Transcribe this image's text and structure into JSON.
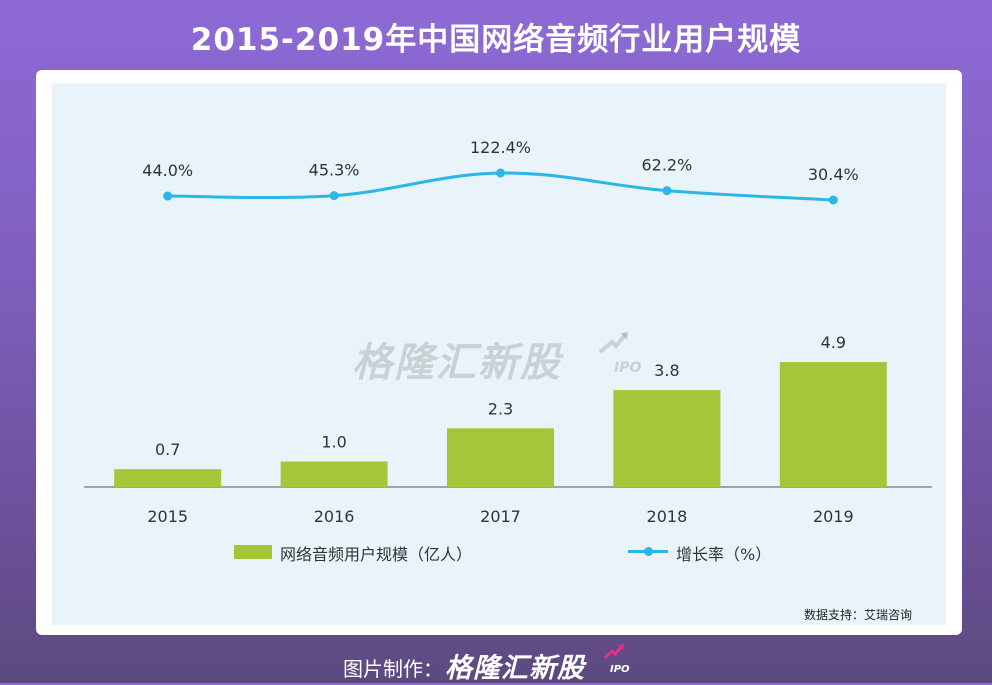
{
  "title": "2015-2019年中国网络音频行业用户规模",
  "chart_data": {
    "type": "bar",
    "categories": [
      "2015",
      "2016",
      "2017",
      "2018",
      "2019"
    ],
    "series": [
      {
        "name": "网络音频用户规模（亿人）",
        "type": "bar",
        "values": [
          0.7,
          1.0,
          2.3,
          3.8,
          4.9
        ],
        "labels": [
          "0.7",
          "1.0",
          "2.3",
          "3.8",
          "4.9"
        ],
        "color": "#a4c73a"
      },
      {
        "name": "增长率（%）",
        "type": "line",
        "values": [
          44.0,
          45.3,
          122.4,
          62.2,
          30.4
        ],
        "labels": [
          "44.0%",
          "45.3%",
          "122.4%",
          "62.2%",
          "30.4%"
        ],
        "color": "#2bb5e8"
      }
    ],
    "legend": {
      "position": "bottom",
      "bar_label": "网络音频用户规模（亿人）",
      "line_label": "增长率（%）"
    }
  },
  "watermark": {
    "text": "格隆汇新股",
    "sub": "IPO"
  },
  "source": "数据支持：艾瑞咨询",
  "credit": {
    "prefix": "图片制作：",
    "brand": "格隆汇新股",
    "sub": "IPO"
  },
  "colors": {
    "bar": "#a4c73a",
    "line": "#2bb5e8",
    "plot_bg": "#e9f4fa"
  }
}
